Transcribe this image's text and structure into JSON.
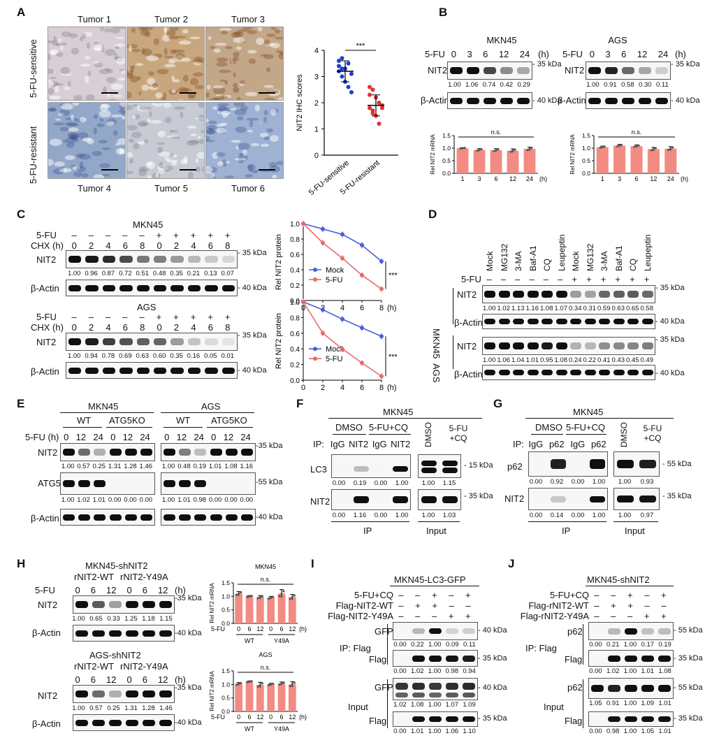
{
  "panels": {
    "A": {
      "letter": "A",
      "top_labels": [
        "Tumor 1",
        "Tumor 2",
        "Tumor 3"
      ],
      "bottom_labels": [
        "Tumor 4",
        "Tumor 5",
        "Tumor 6"
      ],
      "row_labels": [
        "5-FU-sensitive",
        "5-FU-resistant"
      ],
      "ihc_colors": [
        "#d8cfd5",
        "#c9a77e",
        "#c3a789",
        "#93a8c8",
        "#c7ccd4",
        "#9fb2d4"
      ]
    },
    "B": {
      "letter": "B",
      "mkn45": {
        "title": "MKN45",
        "treat": "5-FU",
        "times": [
          "0",
          "3",
          "6",
          "12",
          "24"
        ],
        "unit": "(h)",
        "protein": "NIT2",
        "loading": "β-Actin",
        "kda_top": "35 kDa",
        "kda_bottom": "40 kDa",
        "quant": [
          "1.00",
          "1.06",
          "0.74",
          "0.42",
          "0.29"
        ],
        "ns": "n.s.",
        "ylabel": "Rel NIT2 mRNA",
        "xlabels": [
          "1",
          "3",
          "6",
          "12",
          "24"
        ],
        "xunit": "(h)"
      },
      "ags": {
        "title": "AGS",
        "treat": "5-FU",
        "times": [
          "0",
          "3",
          "6",
          "12",
          "24"
        ],
        "unit": "(h)",
        "protein": "NIT2",
        "loading": "β-Actin",
        "kda_top": "35 kDa",
        "kda_bottom": "40 kDa",
        "quant": [
          "1.00",
          "0.91",
          "0.58",
          "0.30",
          "0.11"
        ],
        "ns": "n.s.",
        "ylabel": "Rel NIT2 mRNA",
        "xlabels": [
          "1",
          "3",
          "6",
          "12",
          "24"
        ],
        "xunit": "(h)"
      }
    },
    "C": {
      "letter": "C",
      "mkn45": {
        "title": "MKN45",
        "fu_row": [
          "–",
          "–",
          "–",
          "–",
          "–",
          "+",
          "+",
          "+",
          "+",
          "+"
        ],
        "chx_row": [
          "0",
          "2",
          "4",
          "6",
          "8",
          "0",
          "2",
          "4",
          "6",
          "8"
        ],
        "quant": [
          "1.00",
          "0.96",
          "0.87",
          "0.72",
          "0.51",
          "0.48",
          "0.35",
          "0.21",
          "0.13",
          "0.07"
        ]
      },
      "ags": {
        "title": "AGS",
        "fu_row": [
          "–",
          "–",
          "–",
          "–",
          "–",
          "+",
          "+",
          "+",
          "+",
          "+"
        ],
        "chx_row": [
          "0",
          "2",
          "4",
          "6",
          "8",
          "0",
          "2",
          "4",
          "6",
          "8"
        ],
        "quant": [
          "1.00",
          "0.94",
          "0.78",
          "0.69",
          "0.63",
          "0.60",
          "0.35",
          "0.16",
          "0.05",
          "0.01"
        ]
      },
      "fu_label": "5-FU",
      "chx_label": "CHX (h)",
      "protein": "NIT2",
      "loading": "β-Actin",
      "kda_top": "35 kDa",
      "kda_bottom": "40 kDa",
      "graph_ylabel": "Rel NIT2 protein",
      "graph_xunit": "(h)",
      "legend": [
        "Mock",
        "5-FU"
      ],
      "sig": "***"
    },
    "D": {
      "letter": "D",
      "lanes": [
        "Mock",
        "MG132",
        "3-MA",
        "Baf-A1",
        "CQ",
        "Leupeptin",
        "Mock",
        "MG132",
        "3-MA",
        "Baf-A1",
        "CQ",
        "Leupeptin"
      ],
      "fu_label": "5-FU",
      "fu_row": [
        "–",
        "–",
        "–",
        "–",
        "–",
        "–",
        "+",
        "+",
        "+",
        "+",
        "+",
        "+"
      ],
      "lines": [
        "MKN45",
        "AGS"
      ],
      "protein": "NIT2",
      "loading": "β-Actin",
      "kda_top": "35 kDa",
      "kda_bottom": "40 kDa",
      "quant_mkn45": [
        "1.00",
        "1.02",
        "1.13",
        "1.16",
        "1.08",
        "1.07",
        "0.34",
        "0.31",
        "0.59",
        "0.63",
        "0.65",
        "0.58"
      ],
      "quant_ags": [
        "1.00",
        "1.06",
        "1.04",
        "1.01",
        "0.95",
        "1.08",
        "0.24",
        "0.22",
        "0.41",
        "0.43",
        "0.45",
        "0.49"
      ]
    },
    "E": {
      "letter": "E",
      "lines": [
        "MKN45",
        "AGS"
      ],
      "groups": [
        "WT",
        "ATG5KO"
      ],
      "fu_label": "5-FU (h)",
      "times": [
        "0",
        "12",
        "24",
        "0",
        "12",
        "24"
      ],
      "proteins": [
        "NIT2",
        "ATG5",
        "β-Actin"
      ],
      "kda": [
        "35 kDa",
        "55 kDa",
        "40 kDa"
      ],
      "nit2_mkn45": [
        "1.00",
        "0.57",
        "0.25",
        "1.31",
        "1.28",
        "1.46"
      ],
      "nit2_ags": [
        "1.00",
        "0.48",
        "0.19",
        "1.01",
        "1.08",
        "1.16"
      ],
      "atg5_mkn45": [
        "1.00",
        "1.02",
        "1.01",
        "0.00",
        "0.00",
        "0.00"
      ],
      "atg5_ags": [
        "1.00",
        "1.01",
        "0.98",
        "0.00",
        "0.00",
        "0.00"
      ]
    },
    "F": {
      "letter": "F",
      "title": "MKN45",
      "treat_groups": [
        "DMSO",
        "5-FU+CQ"
      ],
      "ip_label": "IP:",
      "ip_lanes": [
        "IgG",
        "NIT2",
        "IgG",
        "NIT2"
      ],
      "input_lanes": [
        "DMSO",
        "5-FU +CQ"
      ],
      "proteins": [
        "LC3",
        "NIT2"
      ],
      "kda": [
        "15 kDa",
        "35 kDa"
      ],
      "lc3_ip": [
        "0.00",
        "0.19",
        "0.00",
        "1.00"
      ],
      "lc3_input": [
        "1.00",
        "1.15"
      ],
      "nit2_ip": [
        "0.00",
        "1.16",
        "0.00",
        "1.00"
      ],
      "nit2_input": [
        "1.00",
        "1.03"
      ],
      "footer": [
        "IP",
        "Input"
      ]
    },
    "G": {
      "letter": "G",
      "title": "MKN45",
      "treat_groups": [
        "DMSO",
        "5-FU+CQ"
      ],
      "ip_label": "IP:",
      "ip_lanes": [
        "IgG",
        "p62",
        "IgG",
        "p62"
      ],
      "input_lanes": [
        "DMSO",
        "5-FU +CQ"
      ],
      "proteins": [
        "p62",
        "NIT2"
      ],
      "kda": [
        "55 kDa",
        "35 kDa"
      ],
      "p62_ip": [
        "0.00",
        "0.92",
        "0.00",
        "1.00"
      ],
      "p62_input": [
        "1.00",
        "0.93"
      ],
      "nit2_ip": [
        "0.00",
        "0.14",
        "0.00",
        "1.00"
      ],
      "nit2_input": [
        "1.00",
        "0.97"
      ],
      "footer": [
        "IP",
        "Input"
      ]
    },
    "H": {
      "letter": "H",
      "mkn45": {
        "title": "MKN45-shNIT2",
        "sub": [
          "rNIT2-WT",
          "rNIT2-Y49A"
        ],
        "quant": [
          "1.00",
          "0.65",
          "0.33",
          "1.25",
          "1.18",
          "1.15"
        ]
      },
      "ags": {
        "title": "AGS-shNIT2",
        "sub": [
          "rNIT2-WT",
          "rNIT2-Y49A"
        ],
        "quant": [
          "1.00",
          "0.57",
          "0.25",
          "1.31",
          "1.28",
          "1.46"
        ]
      },
      "fu_label": "5-FU",
      "times": [
        "0",
        "6",
        "12",
        "0",
        "6",
        "12"
      ],
      "unit": "(h)",
      "protein": "NIT2",
      "loading": "β-Actin",
      "kda_top": "35 kDa",
      "kda_bottom": "40 kDa",
      "bar_titles": [
        "MKN45",
        "AGS"
      ],
      "ns": "n.s.",
      "ylabel": "Rel NIT2 mRNA",
      "groups": [
        "WT",
        "Y49A"
      ],
      "xunit": "(h)"
    },
    "I": {
      "letter": "I",
      "title": "MKN45-LC3-GFP",
      "rows": [
        "5-FU+CQ",
        "Flag-NIT2-WT",
        "Flag-NIT2-Y49A"
      ],
      "row_signs": [
        [
          "–",
          "–",
          "+",
          "–",
          "+"
        ],
        [
          "–",
          "+",
          "+",
          "–",
          "–"
        ],
        [
          "–",
          "–",
          "–",
          "+",
          "+"
        ]
      ],
      "ip_label": "IP: Flag",
      "input_label": "Input",
      "proteins": [
        "GFP",
        "Flag",
        "GFP",
        "Flag"
      ],
      "kda": [
        "40 kDa",
        "35 kDa",
        "40 kDa",
        "35 kDa"
      ],
      "q_ip_gfp": [
        "0.00",
        "0.22",
        "1.00",
        "0.09",
        "0.11"
      ],
      "q_ip_flag": [
        "0.00",
        "1.02",
        "1.00",
        "0.98",
        "0.94"
      ],
      "q_in_gfp": [
        "1.02",
        "1.08",
        "1.00",
        "1.07",
        "1.09"
      ],
      "q_in_flag": [
        "0.00",
        "1.01",
        "1.00",
        "1.06",
        "1.10"
      ]
    },
    "J": {
      "letter": "J",
      "title": "MKN45-shNIT2",
      "rows": [
        "5-FU+CQ",
        "Flag-rNIT2-WT",
        "Flag-rNIT2-Y49A"
      ],
      "row_signs": [
        [
          "–",
          "–",
          "+",
          "–",
          "+"
        ],
        [
          "–",
          "+",
          "+",
          "–",
          "–"
        ],
        [
          "–",
          "–",
          "–",
          "+",
          "+"
        ]
      ],
      "ip_label": "IP: Flag",
      "input_label": "Input",
      "proteins": [
        "p62",
        "Flag",
        "p62",
        "Flag"
      ],
      "kda": [
        "55 kDa",
        "35 kDa",
        "55 kDa",
        "35 kDa"
      ],
      "q_ip_p62": [
        "0.00",
        "0.21",
        "1.00",
        "0.17",
        "0.19"
      ],
      "q_ip_flag": [
        "0.00",
        "1.02",
        "1.00",
        "1.01",
        "1.08"
      ],
      "q_in_p62": [
        "1.05",
        "0.91",
        "1.00",
        "1.09",
        "1.01"
      ],
      "q_in_flag": [
        "0.00",
        "0.98",
        "1.00",
        "1.05",
        "1.01"
      ]
    }
  },
  "chart_data": [
    {
      "type": "scatter",
      "ylabel": "NIT2 IHC scores",
      "ylim": [
        0,
        4
      ],
      "yticks": [
        "0",
        "1",
        "2",
        "3",
        "4"
      ],
      "categories": [
        "5-FU-sensitive",
        "5-FU-resistant"
      ],
      "series": [
        {
          "name": "5-FU-sensitive",
          "color": "#1a3fcf",
          "values": [
            3.6,
            3.7,
            3.3,
            3.5,
            3.1,
            3.4,
            3.0,
            2.8,
            2.6,
            2.4,
            3.2,
            3.3
          ],
          "mean": 3.2,
          "sd": 0.4
        },
        {
          "name": "5-FU-resistant",
          "color": "#e03030",
          "values": [
            2.6,
            2.5,
            2.2,
            2.0,
            1.9,
            1.8,
            1.6,
            1.5,
            1.2,
            1.8,
            2.3,
            1.7
          ],
          "mean": 1.9,
          "sd": 0.4
        }
      ],
      "sig": "***"
    },
    {
      "type": "bar",
      "title": "",
      "ylabel": "Rel NIT2 mRNA",
      "ylim": [
        0,
        1.5
      ],
      "yticks": [
        "0.0",
        "0.5",
        "1.0",
        "1.5"
      ],
      "categories": [
        "1",
        "3",
        "6",
        "12",
        "24"
      ],
      "values": [
        1.0,
        0.93,
        0.92,
        0.9,
        0.97
      ],
      "err": [
        0.02,
        0.05,
        0.06,
        0.07,
        0.07
      ]
    },
    {
      "type": "bar",
      "title": "",
      "ylabel": "Rel NIT2 mRNA",
      "ylim": [
        0,
        1.5
      ],
      "yticks": [
        "0.0",
        "0.5",
        "1.0",
        "1.5"
      ],
      "categories": [
        "1",
        "3",
        "6",
        "12",
        "24"
      ],
      "values": [
        1.04,
        1.1,
        1.08,
        0.96,
        0.98
      ],
      "err": [
        0.04,
        0.05,
        0.05,
        0.07,
        0.08
      ]
    },
    {
      "type": "line",
      "ylabel": "Rel NIT2 protein",
      "ylim": [
        0,
        1.0
      ],
      "yticks": [
        "0.0",
        "0.2",
        "0.4",
        "0.6",
        "0.8",
        "1.0"
      ],
      "x": [
        0,
        2,
        4,
        6,
        8
      ],
      "xticks": [
        "0",
        "2",
        "4",
        "6",
        "8"
      ],
      "series": [
        {
          "name": "Mock",
          "color": "#4a5fd8",
          "values": [
            1.0,
            0.93,
            0.86,
            0.72,
            0.51
          ]
        },
        {
          "name": "5-FU",
          "color": "#e56b6b",
          "values": [
            1.0,
            0.75,
            0.55,
            0.33,
            0.15
          ]
        }
      ]
    },
    {
      "type": "line",
      "ylabel": "Rel NIT2 protein",
      "ylim": [
        0,
        1.0
      ],
      "yticks": [
        "0.0",
        "0.2",
        "0.4",
        "0.6",
        "0.8",
        "1.0"
      ],
      "x": [
        0,
        2,
        4,
        6,
        8
      ],
      "xticks": [
        "0",
        "2",
        "4",
        "6",
        "8"
      ],
      "series": [
        {
          "name": "Mock",
          "color": "#4a5fd8",
          "values": [
            1.0,
            0.9,
            0.78,
            0.67,
            0.56
          ]
        },
        {
          "name": "5-FU",
          "color": "#e56b6b",
          "values": [
            1.0,
            0.6,
            0.4,
            0.22,
            0.05
          ]
        }
      ]
    },
    {
      "type": "bar",
      "title": "MKN45",
      "ylabel": "Rel NIT2 mRNA",
      "ylim": [
        0,
        1.5
      ],
      "yticks": [
        "0.0",
        "0.5",
        "1.0",
        "1.5"
      ],
      "categories": [
        "0",
        "6",
        "12",
        "0",
        "6",
        "12"
      ],
      "groups": [
        "WT",
        "Y49A"
      ],
      "values": [
        1.1,
        1.0,
        0.97,
        0.95,
        1.1,
        0.97
      ],
      "err": [
        0.08,
        0.03,
        0.06,
        0.05,
        0.15,
        0.1
      ]
    },
    {
      "type": "bar",
      "title": "AGS",
      "ylabel": "Rel NIT2 mRNA",
      "ylim": [
        0,
        1.5
      ],
      "yticks": [
        "0.0",
        "0.5",
        "1.0",
        "1.5"
      ],
      "categories": [
        "0",
        "6",
        "12",
        "0",
        "6",
        "12"
      ],
      "groups": [
        "WT",
        "Y49A"
      ],
      "values": [
        1.02,
        1.1,
        0.98,
        1.0,
        1.03,
        1.0
      ],
      "err": [
        0.05,
        0.03,
        0.1,
        0.04,
        0.06,
        0.1
      ]
    }
  ]
}
